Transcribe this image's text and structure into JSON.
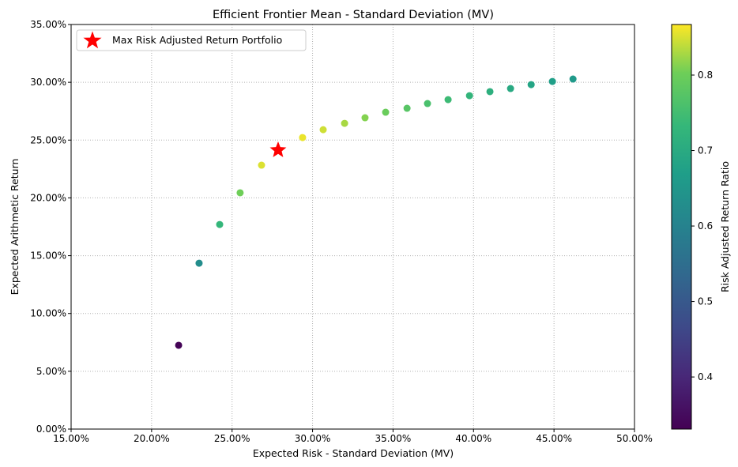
{
  "chart_data": {
    "type": "scatter",
    "title": "Efficient Frontier Mean - Standard Deviation (MV)",
    "xlabel": "Expected Risk - Standard Deviation (MV)",
    "ylabel": "Expected Arithmetic Return",
    "xlim": [
      15,
      50
    ],
    "ylim": [
      0,
      35
    ],
    "xticks": [
      "15.00%",
      "20.00%",
      "25.00%",
      "30.00%",
      "35.00%",
      "40.00%",
      "45.00%",
      "50.00%"
    ],
    "yticks": [
      "0.00%",
      "5.00%",
      "10.00%",
      "15.00%",
      "20.00%",
      "25.00%",
      "30.00%",
      "35.00%"
    ],
    "grid": true,
    "points": [
      {
        "x": 21.68,
        "y": 7.25,
        "c": 0.334
      },
      {
        "x": 22.95,
        "y": 14.35,
        "c": 0.625
      },
      {
        "x": 24.23,
        "y": 17.7,
        "c": 0.73
      },
      {
        "x": 25.5,
        "y": 20.44,
        "c": 0.8
      },
      {
        "x": 26.83,
        "y": 22.83,
        "c": 0.851
      },
      {
        "x": 29.38,
        "y": 25.22,
        "c": 0.858
      },
      {
        "x": 30.66,
        "y": 25.9,
        "c": 0.845
      },
      {
        "x": 31.99,
        "y": 26.45,
        "c": 0.827
      },
      {
        "x": 33.26,
        "y": 26.93,
        "c": 0.81
      },
      {
        "x": 34.54,
        "y": 27.41,
        "c": 0.794
      },
      {
        "x": 35.87,
        "y": 27.75,
        "c": 0.774
      },
      {
        "x": 37.14,
        "y": 28.16,
        "c": 0.758
      },
      {
        "x": 38.42,
        "y": 28.5,
        "c": 0.742
      },
      {
        "x": 39.75,
        "y": 28.84,
        "c": 0.726
      },
      {
        "x": 41.02,
        "y": 29.19,
        "c": 0.712
      },
      {
        "x": 42.3,
        "y": 29.46,
        "c": 0.696
      },
      {
        "x": 43.58,
        "y": 29.8,
        "c": 0.684
      },
      {
        "x": 44.9,
        "y": 30.07,
        "c": 0.67
      },
      {
        "x": 46.18,
        "y": 30.28,
        "c": 0.656
      }
    ],
    "max_point": {
      "x": 27.86,
      "y": 24.13,
      "color": "#ff0000"
    },
    "legend": {
      "label": "Max Risk Adjusted Return Portfolio",
      "placement": "top-left"
    },
    "colorbar": {
      "label": "Risk Adjusted Return Ratio",
      "range": [
        0.331,
        0.867
      ],
      "ticks": [
        0.4,
        0.5,
        0.6,
        0.7,
        0.8
      ],
      "tick_labels": [
        "0.4",
        "0.5",
        "0.6",
        "0.7",
        "0.8"
      ]
    }
  }
}
